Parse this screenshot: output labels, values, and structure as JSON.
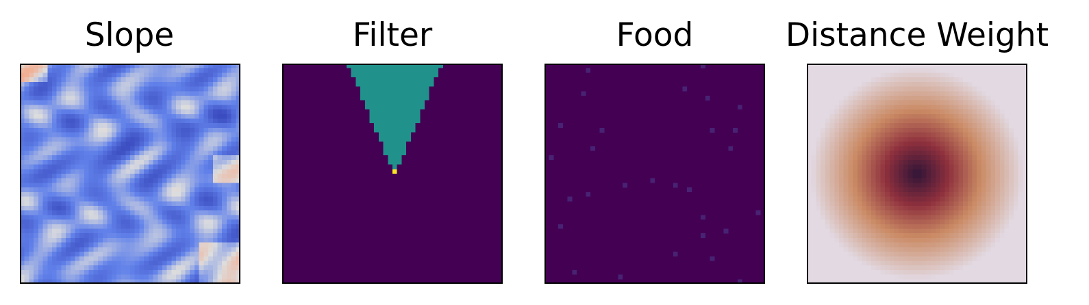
{
  "chart_data": [
    {
      "type": "heatmap",
      "title": "Slope",
      "colormap": "coolwarm",
      "grid_size": 48,
      "description_values": "continuous slope field, mostly low values (blue) with sparse high spots (pale orange)",
      "xlabel": "",
      "ylabel": "",
      "ticks": "none"
    },
    {
      "type": "heatmap",
      "title": "Filter",
      "colormap": "viridis",
      "grid_size": 48,
      "levels": {
        "background": 0,
        "cone": 0.5,
        "origin": 1
      },
      "cone_apex": {
        "row": 23,
        "col": 24
      },
      "cone_top_halfwidth": 9.5,
      "xlabel": "",
      "ylabel": "",
      "ticks": "none"
    },
    {
      "type": "heatmap",
      "title": "Food",
      "colormap": "viridis",
      "grid_size": 48,
      "values": {
        "background": 0,
        "food": 0.1
      },
      "food_cells": [
        [
          1,
          9
        ],
        [
          0,
          34
        ],
        [
          6,
          8
        ],
        [
          5,
          30
        ],
        [
          7,
          35
        ],
        [
          9,
          42
        ],
        [
          13,
          3
        ],
        [
          14,
          12
        ],
        [
          14,
          36
        ],
        [
          14,
          41
        ],
        [
          18,
          10
        ],
        [
          18,
          40
        ],
        [
          20,
          1
        ],
        [
          25,
          23
        ],
        [
          26,
          17
        ],
        [
          26,
          28
        ],
        [
          27,
          31
        ],
        [
          28,
          9
        ],
        [
          29,
          5
        ],
        [
          32,
          46
        ],
        [
          33,
          34
        ],
        [
          35,
          3
        ],
        [
          36,
          39
        ],
        [
          37,
          34
        ],
        [
          41,
          28
        ],
        [
          42,
          36
        ],
        [
          45,
          6
        ],
        [
          46,
          16
        ],
        [
          47,
          42
        ]
      ],
      "xlabel": "",
      "ylabel": "",
      "ticks": "none"
    },
    {
      "type": "heatmap",
      "title": "Distance Weight",
      "colormap": "twilight",
      "grid_size": 48,
      "pattern": "radial distance from centre",
      "xlabel": "",
      "ylabel": "",
      "ticks": "none"
    }
  ]
}
